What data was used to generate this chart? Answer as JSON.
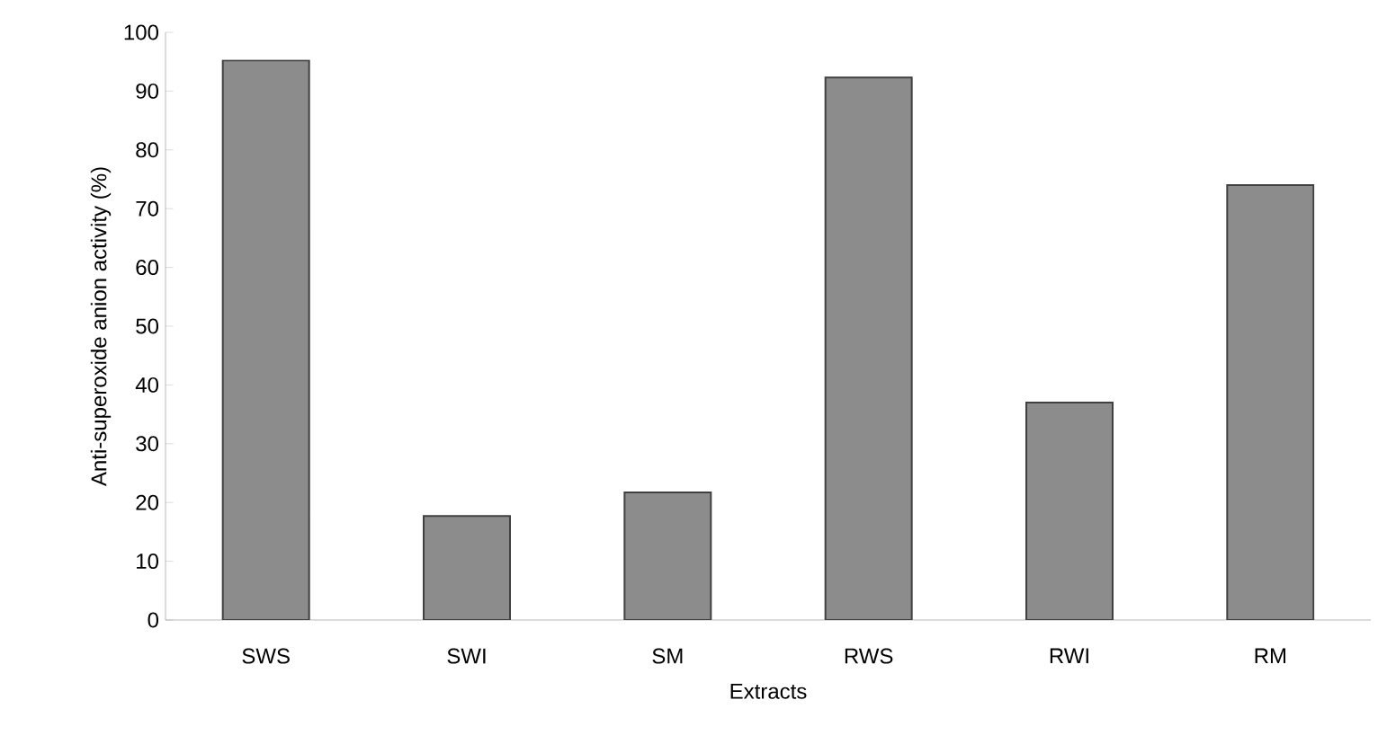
{
  "chart_data": {
    "type": "bar",
    "xlabel": "Extracts",
    "ylabel": "Anti-superoxide anion activity (%)",
    "categories": [
      "SWS",
      "SWI",
      "SM",
      "RWS",
      "RWI",
      "RM"
    ],
    "values": [
      95.2,
      17.7,
      21.7,
      92.3,
      37,
      74
    ],
    "color": "#8c8c8c",
    "ylim": [
      0,
      100
    ],
    "yticks": [
      0,
      10,
      20,
      30,
      40,
      50,
      60,
      70,
      80,
      90,
      100
    ],
    "grid": false
  }
}
